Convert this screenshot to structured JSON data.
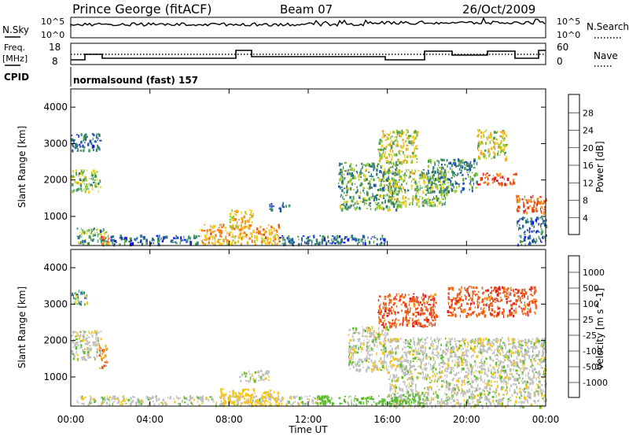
{
  "header": {
    "station": "Prince George (fitACF)",
    "beam": "Beam 07",
    "date": "26/Oct/2009"
  },
  "top_panels": {
    "nsky_label": "N.Sky",
    "nsky_ticks": [
      "10^5",
      "10^0"
    ],
    "nsearch_label": "N.Search",
    "freq_label_1": "Freq.",
    "freq_label_2": "[MHz]",
    "freq_ticks": [
      "18",
      "8"
    ],
    "nave_ticks": [
      "60",
      "0"
    ],
    "nave_label": "Nave",
    "cpid_label": "CPID",
    "cpid_text": "normalsound (fast) 157"
  },
  "x_axis": {
    "label": "Time UT",
    "ticks": [
      "00:00",
      "04:00",
      "08:00",
      "12:00",
      "16:00",
      "20:00",
      "00:00"
    ]
  },
  "power_colorbar": {
    "label": "Power [dB]",
    "ticks": [
      "4",
      "8",
      "12",
      "16",
      "20",
      "24",
      "28"
    ],
    "colors": [
      "#1010ff",
      "#1f4fb0",
      "#2f7a78",
      "#4b9e58",
      "#9acb2f",
      "#f4cd21",
      "#f6a61f",
      "#f47a1a",
      "#ee4a18",
      "#e11f1f"
    ]
  },
  "velocity_colorbar": {
    "label": "Velocity [m s^-1]",
    "ticks": [
      "1000",
      "500",
      "100",
      "25",
      "-25",
      "-100",
      "-500",
      "-1000"
    ],
    "colors": [
      "#2345c2",
      "#3f6eb1",
      "#2f8f65",
      "#5dbd2e",
      "#c0c0c0",
      "#f7c418",
      "#f39a1a",
      "#ef5a17",
      "#e11f1f"
    ]
  },
  "chart_data": [
    {
      "type": "heatmap",
      "panel": "power",
      "xlabel": "Time UT",
      "ylabel": "Slant Range [km]",
      "xlim": [
        0,
        24
      ],
      "ylim": [
        200,
        4500
      ],
      "yticks": [
        1000,
        2000,
        3000,
        4000
      ],
      "colorbar_label": "Power [dB]",
      "color_range": [
        2,
        30
      ],
      "regions": [
        {
          "t": [
            0.0,
            1.5
          ],
          "r": [
            1700,
            2300
          ],
          "power": 14
        },
        {
          "t": [
            0.0,
            1.5
          ],
          "r": [
            2800,
            3300
          ],
          "power": 8
        },
        {
          "t": [
            0.3,
            1.8
          ],
          "r": [
            250,
            700
          ],
          "power": 12
        },
        {
          "t": [
            1.5,
            1.9
          ],
          "r": [
            250,
            500
          ],
          "power": 24
        },
        {
          "t": [
            2.0,
            6.5
          ],
          "r": [
            250,
            500
          ],
          "power": 8
        },
        {
          "t": [
            6.5,
            10.5
          ],
          "r": [
            250,
            800
          ],
          "power": 20
        },
        {
          "t": [
            8.0,
            9.2
          ],
          "r": [
            700,
            1200
          ],
          "power": 18
        },
        {
          "t": [
            10.0,
            11.0
          ],
          "r": [
            1200,
            1400
          ],
          "power": 8
        },
        {
          "t": [
            10.5,
            16.0
          ],
          "r": [
            250,
            500
          ],
          "power": 8
        },
        {
          "t": [
            13.5,
            16.5
          ],
          "r": [
            1200,
            2500
          ],
          "power": 12
        },
        {
          "t": [
            15.5,
            17.5
          ],
          "r": [
            2500,
            3400
          ],
          "power": 16
        },
        {
          "t": [
            16.0,
            19.0
          ],
          "r": [
            1300,
            2300
          ],
          "power": 14
        },
        {
          "t": [
            18.0,
            20.5
          ],
          "r": [
            1700,
            2600
          ],
          "power": 10
        },
        {
          "t": [
            20.5,
            22.5
          ],
          "r": [
            1900,
            2200
          ],
          "power": 26
        },
        {
          "t": [
            20.5,
            22.0
          ],
          "r": [
            2600,
            3400
          ],
          "power": 16
        },
        {
          "t": [
            22.5,
            24.0
          ],
          "r": [
            1100,
            1600
          ],
          "power": 24
        },
        {
          "t": [
            22.5,
            24.0
          ],
          "r": [
            250,
            1000
          ],
          "power": 8
        }
      ]
    },
    {
      "type": "heatmap",
      "panel": "velocity",
      "xlabel": "Time UT",
      "ylabel": "Slant Range [km]",
      "xlim": [
        0,
        24
      ],
      "ylim": [
        200,
        4500
      ],
      "yticks": [
        1000,
        2000,
        3000,
        4000
      ],
      "colorbar_label": "Velocity [m s^-1]",
      "color_range": [
        -1000,
        1000
      ],
      "regions": [
        {
          "t": [
            0.0,
            1.5
          ],
          "r": [
            1500,
            2300
          ],
          "velocity": 0
        },
        {
          "t": [
            0.0,
            0.8
          ],
          "r": [
            3000,
            3400
          ],
          "velocity": 150
        },
        {
          "t": [
            1.4,
            1.8
          ],
          "r": [
            1200,
            1900
          ],
          "velocity": -200
        },
        {
          "t": [
            0.3,
            2.0
          ],
          "r": [
            250,
            500
          ],
          "velocity": 0
        },
        {
          "t": [
            2.0,
            13.0
          ],
          "r": [
            250,
            500
          ],
          "velocity": 0
        },
        {
          "t": [
            7.5,
            10.5
          ],
          "r": [
            250,
            700
          ],
          "velocity": -60
        },
        {
          "t": [
            8.5,
            10.0
          ],
          "r": [
            900,
            1200
          ],
          "velocity": 0
        },
        {
          "t": [
            14.0,
            16.0
          ],
          "r": [
            1200,
            2400
          ],
          "velocity": 0
        },
        {
          "t": [
            16.0,
            24.0
          ],
          "r": [
            200,
            2100
          ],
          "velocity": 0
        },
        {
          "t": [
            15.5,
            18.5
          ],
          "r": [
            2400,
            3300
          ],
          "velocity": -400
        },
        {
          "t": [
            19.0,
            23.5
          ],
          "r": [
            2700,
            3500
          ],
          "velocity": -400
        },
        {
          "t": [
            12.5,
            18.0
          ],
          "r": [
            250,
            500
          ],
          "velocity": 60
        }
      ]
    }
  ]
}
